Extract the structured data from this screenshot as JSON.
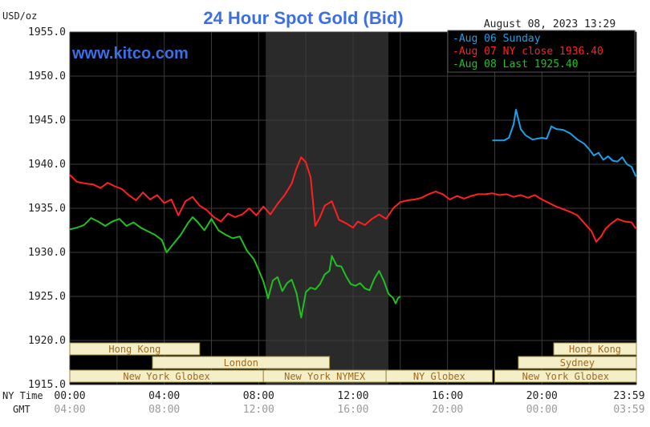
{
  "chart_data": {
    "type": "line",
    "title": "24 Hour Spot Gold (Bid)",
    "units_label": "USD/oz",
    "timestamp": "August 08, 2023 13:29",
    "watermark": "www.kitco.com",
    "ylim": [
      1915.0,
      1955.0
    ],
    "y_ticks": [
      1915.0,
      1920.0,
      1925.0,
      1930.0,
      1935.0,
      1940.0,
      1945.0,
      1950.0,
      1955.0
    ],
    "x_range_hours": [
      0,
      24
    ],
    "ny_time_label": "NY Time",
    "gmt_label": "GMT",
    "x_ticks": [
      {
        "x": 0,
        "ny": "00:00",
        "gmt": "04:00"
      },
      {
        "x": 4,
        "ny": "04:00",
        "gmt": "08:00"
      },
      {
        "x": 8,
        "ny": "08:00",
        "gmt": "12:00"
      },
      {
        "x": 12,
        "ny": "12:00",
        "gmt": "16:00"
      },
      {
        "x": 16,
        "ny": "16:00",
        "gmt": "20:00"
      },
      {
        "x": 20,
        "ny": "20:00",
        "gmt": "00:00"
      },
      {
        "x": 23.98,
        "ny": "23:59",
        "gmt": "03:59"
      }
    ],
    "shaded_hours": [
      8.3,
      13.5
    ],
    "legend_position": "top-right",
    "series": [
      {
        "name": "Aug 06 Sunday",
        "color": "#1ea0e8",
        "points": [
          [
            17.9,
            1942.7
          ],
          [
            18.4,
            1942.7
          ],
          [
            18.6,
            1943.0
          ],
          [
            18.8,
            1944.5
          ],
          [
            18.9,
            1946.2
          ],
          [
            19.1,
            1944.0
          ],
          [
            19.3,
            1943.3
          ],
          [
            19.6,
            1942.8
          ],
          [
            20.0,
            1943.0
          ],
          [
            20.2,
            1942.9
          ],
          [
            20.4,
            1944.3
          ],
          [
            20.6,
            1944.0
          ],
          [
            20.9,
            1943.9
          ],
          [
            21.2,
            1943.5
          ],
          [
            21.5,
            1942.8
          ],
          [
            21.8,
            1942.3
          ],
          [
            22.0,
            1941.7
          ],
          [
            22.2,
            1941.0
          ],
          [
            22.4,
            1941.3
          ],
          [
            22.6,
            1940.5
          ],
          [
            22.8,
            1940.9
          ],
          [
            23.0,
            1940.4
          ],
          [
            23.2,
            1940.3
          ],
          [
            23.4,
            1940.8
          ],
          [
            23.6,
            1940.0
          ],
          [
            23.8,
            1939.7
          ],
          [
            23.98,
            1938.6
          ]
        ]
      },
      {
        "name": "Aug 07 NY close 1936.40",
        "color": "#ff2020",
        "points": [
          [
            0.0,
            1938.8
          ],
          [
            0.3,
            1938.0
          ],
          [
            0.7,
            1937.8
          ],
          [
            1.0,
            1937.7
          ],
          [
            1.3,
            1937.3
          ],
          [
            1.6,
            1937.9
          ],
          [
            1.9,
            1937.5
          ],
          [
            2.2,
            1937.2
          ],
          [
            2.5,
            1936.5
          ],
          [
            2.8,
            1935.9
          ],
          [
            3.1,
            1936.8
          ],
          [
            3.4,
            1936.0
          ],
          [
            3.7,
            1936.5
          ],
          [
            4.0,
            1935.6
          ],
          [
            4.3,
            1936.0
          ],
          [
            4.6,
            1934.2
          ],
          [
            4.9,
            1935.8
          ],
          [
            5.2,
            1936.3
          ],
          [
            5.5,
            1935.3
          ],
          [
            5.8,
            1934.8
          ],
          [
            6.1,
            1934.0
          ],
          [
            6.4,
            1933.5
          ],
          [
            6.7,
            1934.4
          ],
          [
            7.0,
            1934.0
          ],
          [
            7.3,
            1934.3
          ],
          [
            7.6,
            1935.0
          ],
          [
            7.9,
            1934.2
          ],
          [
            8.2,
            1935.2
          ],
          [
            8.5,
            1934.3
          ],
          [
            8.8,
            1935.5
          ],
          [
            9.1,
            1936.5
          ],
          [
            9.4,
            1937.8
          ],
          [
            9.6,
            1939.5
          ],
          [
            9.8,
            1940.8
          ],
          [
            10.0,
            1940.2
          ],
          [
            10.2,
            1938.5
          ],
          [
            10.4,
            1933.0
          ],
          [
            10.6,
            1934.0
          ],
          [
            10.8,
            1935.3
          ],
          [
            11.1,
            1935.8
          ],
          [
            11.4,
            1933.7
          ],
          [
            11.7,
            1933.3
          ],
          [
            12.0,
            1932.8
          ],
          [
            12.2,
            1933.5
          ],
          [
            12.5,
            1933.1
          ],
          [
            12.8,
            1933.8
          ],
          [
            13.1,
            1934.3
          ],
          [
            13.4,
            1933.8
          ],
          [
            13.7,
            1935.0
          ],
          [
            14.0,
            1935.7
          ],
          [
            14.3,
            1935.9
          ],
          [
            14.6,
            1936.0
          ],
          [
            14.9,
            1936.2
          ],
          [
            15.2,
            1936.6
          ],
          [
            15.5,
            1936.9
          ],
          [
            15.8,
            1936.6
          ],
          [
            16.1,
            1936.0
          ],
          [
            16.4,
            1936.4
          ],
          [
            16.7,
            1936.1
          ],
          [
            17.0,
            1936.4
          ],
          [
            17.3,
            1936.6
          ],
          [
            17.6,
            1936.6
          ],
          [
            17.9,
            1936.7
          ],
          [
            18.2,
            1936.5
          ],
          [
            18.5,
            1936.6
          ],
          [
            18.8,
            1936.3
          ],
          [
            19.1,
            1936.5
          ],
          [
            19.4,
            1936.2
          ],
          [
            19.7,
            1936.5
          ],
          [
            20.0,
            1936.0
          ],
          [
            20.3,
            1935.6
          ],
          [
            20.6,
            1935.2
          ],
          [
            20.9,
            1934.9
          ],
          [
            21.2,
            1934.6
          ],
          [
            21.5,
            1934.2
          ],
          [
            21.8,
            1933.3
          ],
          [
            22.1,
            1932.4
          ],
          [
            22.3,
            1931.2
          ],
          [
            22.5,
            1931.8
          ],
          [
            22.7,
            1932.7
          ],
          [
            22.9,
            1933.2
          ],
          [
            23.2,
            1933.8
          ],
          [
            23.5,
            1933.5
          ],
          [
            23.8,
            1933.4
          ],
          [
            23.98,
            1932.7
          ]
        ]
      },
      {
        "name": "Aug 08 Last 1925.40",
        "color": "#20c020",
        "points": [
          [
            0.0,
            1932.6
          ],
          [
            0.3,
            1932.8
          ],
          [
            0.6,
            1933.1
          ],
          [
            0.9,
            1933.9
          ],
          [
            1.2,
            1933.5
          ],
          [
            1.5,
            1933.0
          ],
          [
            1.8,
            1933.5
          ],
          [
            2.1,
            1933.8
          ],
          [
            2.4,
            1933.0
          ],
          [
            2.7,
            1933.4
          ],
          [
            3.0,
            1932.8
          ],
          [
            3.3,
            1932.4
          ],
          [
            3.6,
            1932.0
          ],
          [
            3.9,
            1931.4
          ],
          [
            4.1,
            1930.0
          ],
          [
            4.4,
            1931.0
          ],
          [
            4.7,
            1932.0
          ],
          [
            5.0,
            1933.3
          ],
          [
            5.2,
            1934.0
          ],
          [
            5.4,
            1933.5
          ],
          [
            5.7,
            1932.5
          ],
          [
            6.0,
            1933.8
          ],
          [
            6.3,
            1932.5
          ],
          [
            6.6,
            1932.0
          ],
          [
            6.9,
            1931.6
          ],
          [
            7.2,
            1931.8
          ],
          [
            7.5,
            1930.2
          ],
          [
            7.8,
            1929.2
          ],
          [
            8.0,
            1928.0
          ],
          [
            8.2,
            1926.7
          ],
          [
            8.4,
            1924.8
          ],
          [
            8.6,
            1926.8
          ],
          [
            8.8,
            1927.2
          ],
          [
            9.0,
            1925.6
          ],
          [
            9.2,
            1926.5
          ],
          [
            9.4,
            1926.9
          ],
          [
            9.6,
            1925.4
          ],
          [
            9.8,
            1922.6
          ],
          [
            10.0,
            1925.5
          ],
          [
            10.2,
            1926.0
          ],
          [
            10.4,
            1925.8
          ],
          [
            10.6,
            1926.4
          ],
          [
            10.8,
            1927.5
          ],
          [
            11.0,
            1927.9
          ],
          [
            11.1,
            1929.6
          ],
          [
            11.3,
            1928.5
          ],
          [
            11.5,
            1928.4
          ],
          [
            11.7,
            1927.3
          ],
          [
            11.9,
            1926.4
          ],
          [
            12.1,
            1926.2
          ],
          [
            12.3,
            1926.5
          ],
          [
            12.5,
            1925.9
          ],
          [
            12.7,
            1925.7
          ],
          [
            12.9,
            1927.0
          ],
          [
            13.1,
            1927.9
          ],
          [
            13.3,
            1926.8
          ],
          [
            13.5,
            1925.3
          ],
          [
            13.7,
            1924.8
          ],
          [
            13.8,
            1924.2
          ],
          [
            13.9,
            1924.8
          ],
          [
            14.0,
            1925.0
          ]
        ]
      }
    ],
    "sessions": [
      {
        "label": "Hong Kong",
        "start": 0,
        "end": 5.5,
        "row": 0
      },
      {
        "label": "Hong Kong",
        "start": 20.5,
        "end": 24,
        "row": 0
      },
      {
        "label": "London",
        "start": 3.5,
        "end": 11.0,
        "row": 1
      },
      {
        "label": "Sydney",
        "start": 19.0,
        "end": 24,
        "row": 1
      },
      {
        "label": "New York Globex",
        "start": 0,
        "end": 8.2,
        "row": 2
      },
      {
        "label": "New York NYMEX",
        "start": 8.2,
        "end": 13.4,
        "row": 2
      },
      {
        "label": "NY Globex",
        "start": 13.4,
        "end": 17.9,
        "row": 2
      },
      {
        "label": "New York Globex",
        "start": 18.0,
        "end": 24,
        "row": 2
      }
    ],
    "colors": {
      "plot_bg": "#000000",
      "shade": "#2a2a2a",
      "grid": "#3c3c3c",
      "session_fill": "#f4efc8",
      "session_border": "#9a8a40",
      "session_text": "#a06a20",
      "title": "#3a6fe6",
      "brand": "#3a6fe6",
      "axis_text": "#222222",
      "gmt_text": "#9a9a9a"
    }
  }
}
